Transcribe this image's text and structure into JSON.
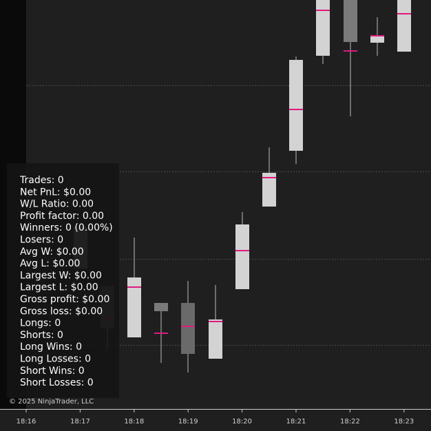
{
  "stats": [
    "Trades: 0",
    "Net PnL: $0.00",
    "W/L Ratio: 0.00",
    "Profit factor: 0.00",
    "Winners: 0 (0.00%)",
    "Losers: 0",
    "Avg W: $0.00",
    "Avg L: $0.00",
    "Largest W: $0.00",
    "Largest L: $0.00",
    "Gross profit: $0.00",
    "Gross loss: $0.00",
    "Longs: 0",
    "Shorts: 0",
    "Long Wins: 0",
    "Long Losses: 0",
    "Short Wins: 0",
    "Short Losses: 0"
  ],
  "copyright": "© 2025 NinjaTrader, LLC",
  "time_axis": [
    "18:16",
    "18:17",
    "18:18",
    "18:19",
    "18:20",
    "18:21",
    "18:22",
    "18:23"
  ]
}
